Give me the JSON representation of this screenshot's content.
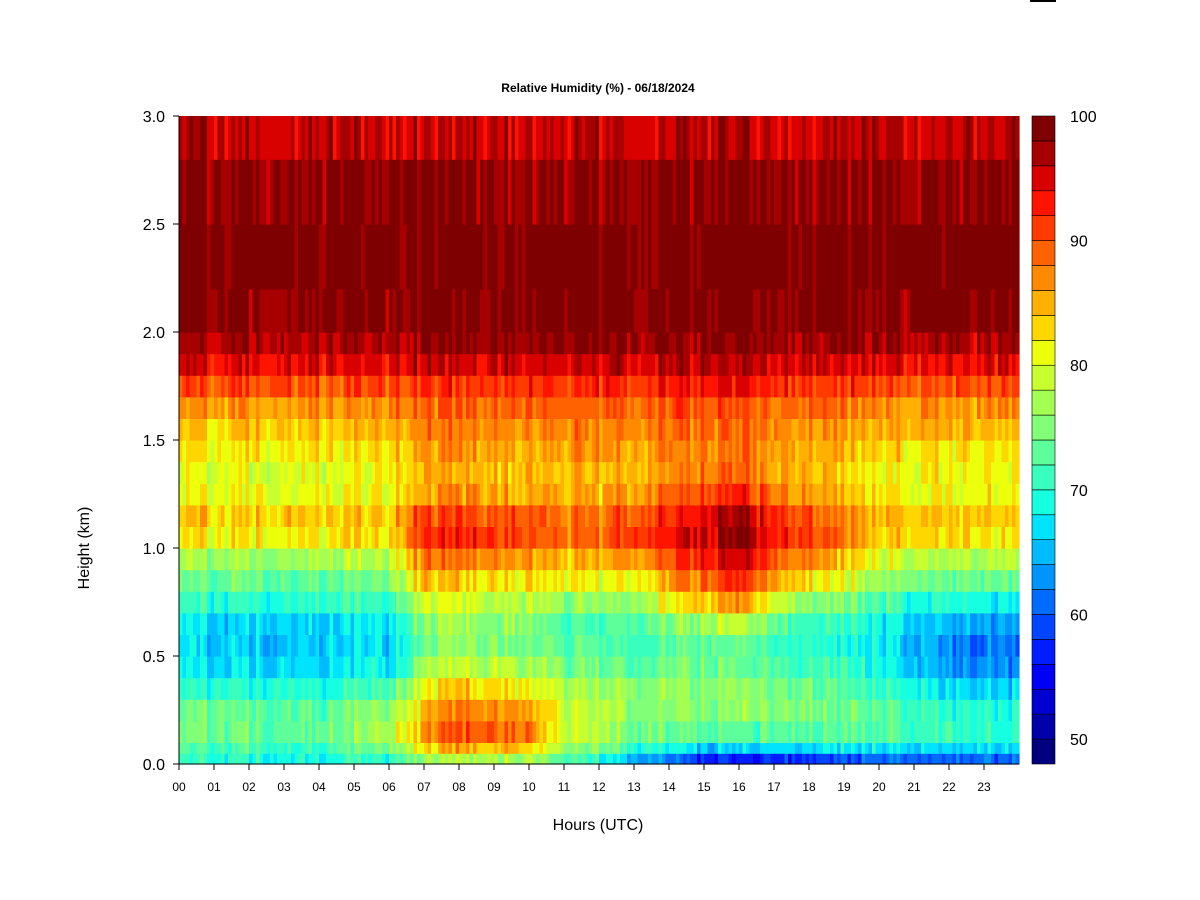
{
  "chart_data": {
    "type": "heatmap",
    "title": "Relative Humidity (%) - 06/18/2024",
    "xlabel": "Hours (UTC)",
    "ylabel": "Height (km)",
    "xlim": [
      0,
      24
    ],
    "ylim": [
      0,
      3
    ],
    "x_ticks": [
      "00",
      "01",
      "02",
      "03",
      "04",
      "05",
      "06",
      "07",
      "08",
      "09",
      "10",
      "11",
      "12",
      "13",
      "14",
      "15",
      "16",
      "17",
      "18",
      "19",
      "20",
      "21",
      "22",
      "23"
    ],
    "y_ticks": [
      "0.0",
      "0.5",
      "1.0",
      "1.5",
      "2.0",
      "2.5",
      "3.0"
    ],
    "colorbar": {
      "min": 48,
      "max": 100,
      "step": 2,
      "tick_labels": [
        "50",
        "60",
        "70",
        "80",
        "90",
        "100"
      ],
      "colors": [
        "#00007f",
        "#0000a8",
        "#0000d0",
        "#0000f4",
        "#001dff",
        "#0045ff",
        "#006cff",
        "#0094ff",
        "#00bcff",
        "#00e3ff",
        "#16ffe1",
        "#39ffbe",
        "#5dff9a",
        "#81ff76",
        "#a4ff53",
        "#c8ff2f",
        "#ecff0b",
        "#ffd700",
        "#ffb000",
        "#ff8900",
        "#ff6200",
        "#ff3b00",
        "#ff1400",
        "#d90000",
        "#a60000",
        "#7f0000"
      ]
    },
    "height_levels_km": [
      0.0,
      0.05,
      0.1,
      0.2,
      0.3,
      0.4,
      0.5,
      0.6,
      0.7,
      0.8,
      0.9,
      1.0,
      1.1,
      1.2,
      1.3,
      1.4,
      1.5,
      1.6,
      1.7,
      1.8,
      1.9,
      2.0,
      2.2,
      2.5,
      2.8,
      3.0
    ],
    "profiles": [
      {
        "hour": 0,
        "rh": [
          70,
          70,
          73,
          75,
          72,
          69,
          67,
          66,
          68,
          72,
          75,
          79,
          85,
          82,
          80,
          81,
          83,
          85,
          88,
          93,
          96,
          98,
          100,
          100,
          97,
          95
        ]
      },
      {
        "hour": 2,
        "rh": [
          70,
          70,
          73,
          75,
          72,
          68,
          66,
          66,
          68,
          72,
          75,
          79,
          85,
          82,
          80,
          81,
          83,
          85,
          88,
          93,
          96,
          98,
          100,
          100,
          97,
          95
        ]
      },
      {
        "hour": 4,
        "rh": [
          69,
          69,
          72,
          74,
          71,
          68,
          66,
          66,
          68,
          72,
          75,
          79,
          85,
          82,
          80,
          81,
          83,
          85,
          88,
          93,
          96,
          98,
          100,
          100,
          97,
          95
        ]
      },
      {
        "hour": 6,
        "rh": [
          70,
          72,
          78,
          78,
          74,
          70,
          67,
          67,
          69,
          73,
          76,
          80,
          86,
          83,
          81,
          82,
          84,
          86,
          88,
          93,
          96,
          98,
          100,
          100,
          97,
          95
        ]
      },
      {
        "hour": 7,
        "rh": [
          74,
          79,
          86,
          86,
          83,
          79,
          74,
          74,
          77,
          83,
          86,
          90,
          94,
          88,
          85,
          86,
          87,
          88,
          90,
          94,
          97,
          99,
          100,
          100,
          97,
          95
        ]
      },
      {
        "hour": 8,
        "rh": [
          75,
          81,
          90,
          90,
          87,
          81,
          77,
          76,
          78,
          82,
          86,
          90,
          94,
          88,
          85,
          86,
          87,
          88,
          90,
          94,
          97,
          99,
          100,
          100,
          97,
          95
        ]
      },
      {
        "hour": 10,
        "rh": [
          75,
          80,
          89,
          88,
          85,
          80,
          76,
          75,
          77,
          81,
          85,
          89,
          93,
          87,
          84,
          85,
          87,
          88,
          90,
          94,
          97,
          99,
          100,
          100,
          97,
          95
        ]
      },
      {
        "hour": 11,
        "rh": [
          71,
          74,
          79,
          80,
          79,
          77,
          73,
          72,
          73,
          79,
          83,
          86,
          91,
          86,
          84,
          85,
          87,
          88,
          90,
          94,
          97,
          99,
          100,
          100,
          97,
          95
        ]
      },
      {
        "hour": 12,
        "rh": [
          67,
          72,
          77,
          77,
          78,
          76,
          72,
          71,
          73,
          79,
          83,
          87,
          91,
          86,
          84,
          85,
          87,
          88,
          90,
          94,
          97,
          99,
          100,
          100,
          97,
          95
        ]
      },
      {
        "hour": 13,
        "rh": [
          62,
          68,
          74,
          76,
          77,
          75,
          72,
          72,
          74,
          80,
          85,
          89,
          93,
          88,
          85,
          86,
          87,
          88,
          90,
          94,
          97,
          99,
          100,
          100,
          97,
          95
        ]
      },
      {
        "hour": 15,
        "rh": [
          54,
          62,
          70,
          74,
          76,
          76,
          73,
          74,
          80,
          87,
          91,
          95,
          96,
          92,
          88,
          87,
          88,
          89,
          91,
          95,
          97,
          99,
          100,
          100,
          97,
          95
        ]
      },
      {
        "hour": 16,
        "rh": [
          52,
          60,
          70,
          74,
          76,
          75,
          72,
          74,
          82,
          90,
          94,
          97,
          99,
          95,
          90,
          88,
          88,
          89,
          91,
          95,
          97,
          99,
          100,
          100,
          97,
          95
        ]
      },
      {
        "hour": 17,
        "rh": [
          54,
          62,
          71,
          75,
          76,
          74,
          71,
          72,
          76,
          84,
          89,
          92,
          95,
          90,
          87,
          86,
          87,
          88,
          90,
          94,
          97,
          99,
          100,
          100,
          97,
          95
        ]
      },
      {
        "hour": 18,
        "rh": [
          55,
          63,
          72,
          75,
          75,
          73,
          70,
          70,
          73,
          80,
          86,
          90,
          93,
          88,
          85,
          85,
          86,
          88,
          90,
          94,
          97,
          99,
          100,
          100,
          97,
          95
        ]
      },
      {
        "hour": 20,
        "rh": [
          58,
          64,
          71,
          73,
          72,
          70,
          68,
          68,
          70,
          74,
          78,
          82,
          86,
          83,
          81,
          82,
          84,
          86,
          88,
          93,
          96,
          98,
          100,
          100,
          97,
          95
        ]
      },
      {
        "hour": 22,
        "rh": [
          58,
          64,
          70,
          72,
          69,
          65,
          62,
          63,
          67,
          72,
          76,
          80,
          86,
          83,
          81,
          82,
          84,
          86,
          88,
          93,
          96,
          98,
          100,
          100,
          97,
          95
        ]
      },
      {
        "hour": 24,
        "rh": [
          58,
          63,
          69,
          71,
          68,
          63,
          60,
          61,
          65,
          71,
          76,
          80,
          84,
          82,
          80,
          81,
          83,
          85,
          88,
          93,
          96,
          98,
          100,
          100,
          97,
          95
        ]
      }
    ]
  }
}
